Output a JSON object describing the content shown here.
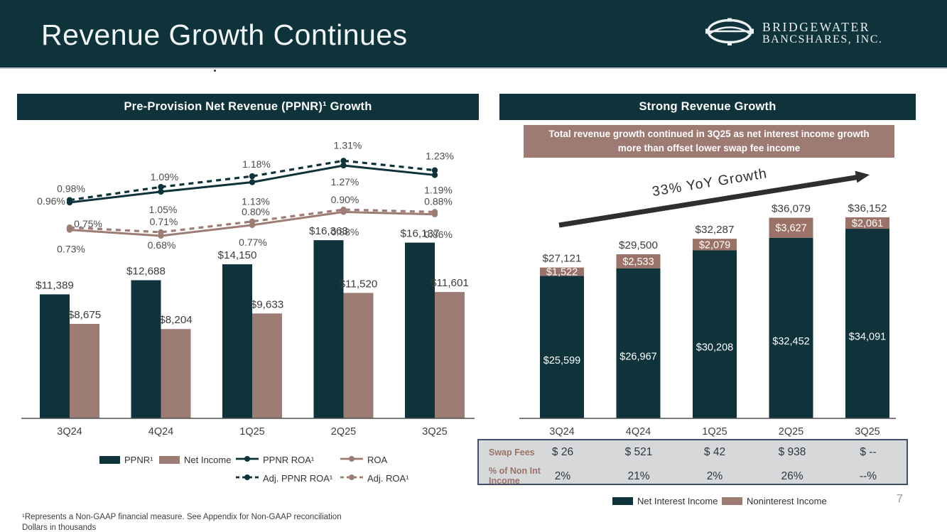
{
  "header": {
    "title": "Revenue Growth Continues",
    "logo": {
      "line1": "BRIDGEWATER",
      "line2": "BANCSHARES, INC."
    }
  },
  "left_panel": {
    "title": "Pre-Provision Net Revenue (PPNR)¹ Growth",
    "legend": [
      {
        "label": "PPNR¹",
        "symbol": "swatch",
        "color": "teal"
      },
      {
        "label": "Net Income",
        "symbol": "swatch",
        "color": "brown"
      },
      {
        "label": "PPNR ROA¹",
        "symbol": "line-solid",
        "color": "teal"
      },
      {
        "label": "ROA",
        "symbol": "line-solid",
        "color": "brown"
      },
      {
        "label": "Adj. PPNR ROA¹",
        "symbol": "line-dashed",
        "color": "teal"
      },
      {
        "label": "Adj. ROA¹",
        "symbol": "line-dashed",
        "color": "brown"
      }
    ]
  },
  "right_panel": {
    "title": "Strong Revenue Growth",
    "callout": "Total revenue growth continued in 3Q25 as net interest income growth more than offset lower swap fee income",
    "legend": [
      {
        "label": "Net Interest Income",
        "symbol": "swatch",
        "color": "teal"
      },
      {
        "label": "Noninterest Income",
        "symbol": "swatch",
        "color": "brown"
      }
    ],
    "table": {
      "rows": [
        {
          "label": "Swap Fees",
          "values": [
            "$ 26",
            "$ 521",
            "$ 42",
            "$ 938",
            "$ --"
          ]
        },
        {
          "label": "% of Non Int Income",
          "values": [
            "2%",
            "21%",
            "2%",
            "26%",
            "--%"
          ]
        }
      ]
    }
  },
  "chart_data": [
    {
      "type": "bar+line",
      "title": "Pre-Provision Net Revenue (PPNR)¹ Growth",
      "categories": [
        "3Q24",
        "4Q24",
        "1Q25",
        "2Q25",
        "3Q25"
      ],
      "units": "Dollars in thousands",
      "bar_series": [
        {
          "name": "PPNR¹",
          "color": "teal",
          "values": [
            11389,
            12688,
            14150,
            16363,
            16137
          ],
          "value_labels": [
            "$11,389",
            "$12,688",
            "$14,150",
            "$16,363",
            "$16,137"
          ]
        },
        {
          "name": "Net Income",
          "color": "brown",
          "values": [
            8675,
            8204,
            9633,
            11520,
            11601
          ],
          "value_labels": [
            "$8,675",
            "$8,204",
            "$9,633",
            "$11,520",
            "$11,601"
          ]
        }
      ],
      "line_series": [
        {
          "name": "PPNR ROA¹",
          "style": "solid",
          "color": "teal",
          "values": [
            0.96,
            1.05,
            1.13,
            1.27,
            1.19
          ],
          "value_labels": [
            "0.96%",
            "1.05%",
            "1.13%",
            "1.27%",
            "1.19%"
          ]
        },
        {
          "name": "ROA",
          "style": "solid",
          "color": "brown",
          "values": [
            0.73,
            0.68,
            0.77,
            0.88,
            0.86
          ],
          "value_labels": [
            "0.73%",
            "0.68%",
            "0.77%",
            "0.88%",
            "0.86%"
          ]
        },
        {
          "name": "Adj. PPNR ROA¹",
          "style": "dashed",
          "color": "teal",
          "values": [
            0.98,
            1.09,
            1.18,
            1.31,
            1.23
          ],
          "value_labels": [
            "0.98%",
            "1.09%",
            "1.18%",
            "1.31%",
            "1.23%"
          ]
        },
        {
          "name": "Adj. ROA¹",
          "style": "dashed",
          "color": "brown",
          "values": [
            0.75,
            0.71,
            0.8,
            0.9,
            0.88
          ],
          "value_labels": [
            "0.75%",
            "0.71%",
            "0.80%",
            "0.90%",
            "0.88%"
          ]
        }
      ]
    },
    {
      "type": "stacked-bar",
      "title": "Strong Revenue Growth",
      "categories": [
        "3Q24",
        "4Q24",
        "1Q25",
        "2Q25",
        "3Q25"
      ],
      "units": "Dollars in thousands",
      "series": [
        {
          "name": "Net Interest Income",
          "color": "teal",
          "values": [
            25599,
            26967,
            30208,
            32452,
            34091
          ],
          "value_labels": [
            "$25,599",
            "$26,967",
            "$30,208",
            "$32,452",
            "$34,091"
          ]
        },
        {
          "name": "Noninterest Income",
          "color": "brown",
          "values": [
            1522,
            2533,
            2079,
            3627,
            2061
          ],
          "value_labels": [
            "$1,522",
            "$2,533",
            "$2,079",
            "$3,627",
            "$2,061"
          ]
        }
      ],
      "totals": [
        27121,
        29500,
        32287,
        36079,
        36152
      ],
      "total_labels": [
        "$27,121",
        "$29,500",
        "$32,287",
        "$36,079",
        "$36,152"
      ],
      "annotation": "33% YoY Growth"
    }
  ],
  "footnotes": {
    "line1": "¹Represents a Non-GAAP financial measure. See Appendix for Non-GAAP reconciliation",
    "line2": "Dollars in thousands"
  },
  "page_number": "7",
  "colors": {
    "header_bg": "#0e333b",
    "teal": "#0e333b",
    "brown": "#9d7c73",
    "brown_segment": "#9a7268",
    "callout_bg": "#9d7a72",
    "table_border": "#42506b",
    "table_bg": "#d6d8da",
    "arrow": "#2e2e2e"
  }
}
